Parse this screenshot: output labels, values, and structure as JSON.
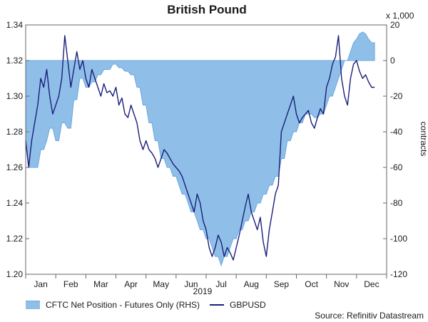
{
  "chart_data": {
    "type": "line",
    "title": "British Pound",
    "xlabel": "2019",
    "ylabel_left": "",
    "ylabel_right": "contracts",
    "right_axis_multiplier": "x 1,000",
    "source": "Source: Refinitiv Datastream",
    "x_categories": [
      "Jan",
      "Feb",
      "Mar",
      "Apr",
      "May",
      "Jun",
      "Jul",
      "Aug",
      "Sep",
      "Oct",
      "Nov",
      "Dec"
    ],
    "y_left": {
      "ticks": [
        "1.34",
        "1.32",
        "1.30",
        "1.28",
        "1.26",
        "1.24",
        "1.22",
        "1.20"
      ],
      "range": [
        1.2,
        1.34
      ]
    },
    "y_right": {
      "ticks": [
        "20",
        "0",
        "-20",
        "-40",
        "-60",
        "-80",
        "-100",
        "-120"
      ],
      "range": [
        -120,
        20
      ]
    },
    "legend": {
      "position": "bottom-left"
    },
    "grid": false,
    "series": [
      {
        "name": "CFTC Net Position - Futures Only (RHS)",
        "axis": "right",
        "style": "area",
        "color": "#8fbfe8",
        "edge_color": "#6aa8de",
        "x": [
          0.0,
          0.1,
          0.2,
          0.3,
          0.4,
          0.5,
          0.6,
          0.7,
          0.8,
          0.9,
          1.0,
          1.1,
          1.2,
          1.3,
          1.4,
          1.5,
          1.6,
          1.7,
          1.8,
          1.9,
          2.0,
          2.1,
          2.2,
          2.3,
          2.4,
          2.5,
          2.6,
          2.7,
          2.8,
          2.9,
          3.0,
          3.1,
          3.2,
          3.3,
          3.4,
          3.5,
          3.6,
          3.7,
          3.8,
          3.9,
          4.0,
          4.1,
          4.2,
          4.3,
          4.4,
          4.5,
          4.6,
          4.7,
          4.8,
          4.9,
          5.0,
          5.1,
          5.2,
          5.3,
          5.4,
          5.5,
          5.6,
          5.7,
          5.8,
          5.9,
          6.0,
          6.1,
          6.2,
          6.3,
          6.4,
          6.5,
          6.6,
          6.7,
          6.8,
          6.9,
          7.0,
          7.1,
          7.2,
          7.3,
          7.4,
          7.5,
          7.6,
          7.7,
          7.8,
          7.9,
          8.0,
          8.1,
          8.2,
          8.3,
          8.4,
          8.5,
          8.6,
          8.7,
          8.8,
          8.9,
          9.0,
          9.1,
          9.2,
          9.3,
          9.4,
          9.5,
          9.6,
          9.7,
          9.8,
          9.9,
          10.0,
          10.1,
          10.2,
          10.3,
          10.4,
          10.5,
          10.6,
          10.7,
          10.8,
          10.9,
          11.0,
          11.1,
          11.2,
          11.3,
          11.4,
          11.5,
          11.6
        ],
        "values": [
          -45,
          -60,
          -60,
          -60,
          -60,
          -50,
          -50,
          -45,
          -38,
          -38,
          -45,
          -45,
          -35,
          -35,
          -38,
          -38,
          -22,
          -22,
          -10,
          -10,
          -15,
          -15,
          -12,
          -12,
          -8,
          -8,
          -5,
          -5,
          -5,
          -2,
          -2,
          -4,
          -4,
          -6,
          -6,
          -8,
          -8,
          -15,
          -15,
          -25,
          -25,
          -35,
          -35,
          -45,
          -45,
          -55,
          -55,
          -60,
          -60,
          -65,
          -65,
          -70,
          -75,
          -75,
          -80,
          -85,
          -85,
          -90,
          -95,
          -95,
          -100,
          -100,
          -105,
          -110,
          -110,
          -115,
          -110,
          -110,
          -105,
          -100,
          -100,
          -95,
          -95,
          -90,
          -90,
          -85,
          -85,
          -80,
          -80,
          -75,
          -75,
          -70,
          -70,
          -65,
          -65,
          -55,
          -55,
          -45,
          -45,
          -40,
          -40,
          -35,
          -35,
          -30,
          -30,
          -30,
          -32,
          -32,
          -30,
          -30,
          -25,
          -20,
          -20,
          -15,
          -10,
          -5,
          0,
          0,
          5,
          10,
          12,
          15,
          16,
          15,
          12,
          10,
          10
        ]
      },
      {
        "name": "GBPUSD",
        "axis": "left",
        "style": "line",
        "color": "#1b1f7a",
        "x": [
          0.0,
          0.1,
          0.2,
          0.3,
          0.4,
          0.5,
          0.6,
          0.7,
          0.8,
          0.9,
          1.0,
          1.1,
          1.2,
          1.3,
          1.4,
          1.5,
          1.6,
          1.7,
          1.8,
          1.9,
          2.0,
          2.1,
          2.2,
          2.3,
          2.4,
          2.5,
          2.6,
          2.7,
          2.8,
          2.9,
          3.0,
          3.1,
          3.2,
          3.3,
          3.4,
          3.5,
          3.6,
          3.7,
          3.8,
          3.9,
          4.0,
          4.1,
          4.2,
          4.3,
          4.4,
          4.5,
          4.6,
          4.7,
          4.8,
          4.9,
          5.0,
          5.1,
          5.2,
          5.3,
          5.4,
          5.5,
          5.6,
          5.7,
          5.8,
          5.9,
          6.0,
          6.1,
          6.2,
          6.3,
          6.4,
          6.5,
          6.6,
          6.7,
          6.8,
          6.9,
          7.0,
          7.1,
          7.2,
          7.3,
          7.4,
          7.5,
          7.6,
          7.7,
          7.8,
          7.9,
          8.0,
          8.1,
          8.2,
          8.3,
          8.4,
          8.5,
          8.6,
          8.7,
          8.8,
          8.9,
          9.0,
          9.1,
          9.2,
          9.3,
          9.4,
          9.5,
          9.6,
          9.7,
          9.8,
          9.9,
          10.0,
          10.1,
          10.2,
          10.3,
          10.4,
          10.5,
          10.6,
          10.7,
          10.8,
          10.9,
          11.0,
          11.1,
          11.2,
          11.3,
          11.4,
          11.5,
          11.6
        ],
        "values": [
          1.275,
          1.26,
          1.275,
          1.285,
          1.295,
          1.31,
          1.305,
          1.315,
          1.3,
          1.29,
          1.295,
          1.3,
          1.31,
          1.334,
          1.32,
          1.305,
          1.315,
          1.325,
          1.315,
          1.32,
          1.31,
          1.305,
          1.315,
          1.31,
          1.305,
          1.3,
          1.307,
          1.302,
          1.303,
          1.3,
          1.305,
          1.295,
          1.299,
          1.29,
          1.288,
          1.295,
          1.29,
          1.285,
          1.275,
          1.27,
          1.275,
          1.27,
          1.268,
          1.265,
          1.26,
          1.265,
          1.27,
          1.268,
          1.265,
          1.262,
          1.26,
          1.258,
          1.255,
          1.25,
          1.245,
          1.24,
          1.235,
          1.245,
          1.24,
          1.23,
          1.225,
          1.215,
          1.21,
          1.215,
          1.222,
          1.218,
          1.21,
          1.215,
          1.212,
          1.208,
          1.215,
          1.222,
          1.23,
          1.238,
          1.245,
          1.235,
          1.23,
          1.225,
          1.232,
          1.218,
          1.21,
          1.225,
          1.235,
          1.245,
          1.25,
          1.28,
          1.285,
          1.29,
          1.295,
          1.3,
          1.29,
          1.285,
          1.288,
          1.29,
          1.292,
          1.285,
          1.282,
          1.288,
          1.293,
          1.29,
          1.305,
          1.31,
          1.318,
          1.322,
          1.334,
          1.31,
          1.3,
          1.295,
          1.31,
          1.318,
          1.32,
          1.314,
          1.31,
          1.312,
          1.308,
          1.305,
          1.305
        ]
      }
    ]
  }
}
